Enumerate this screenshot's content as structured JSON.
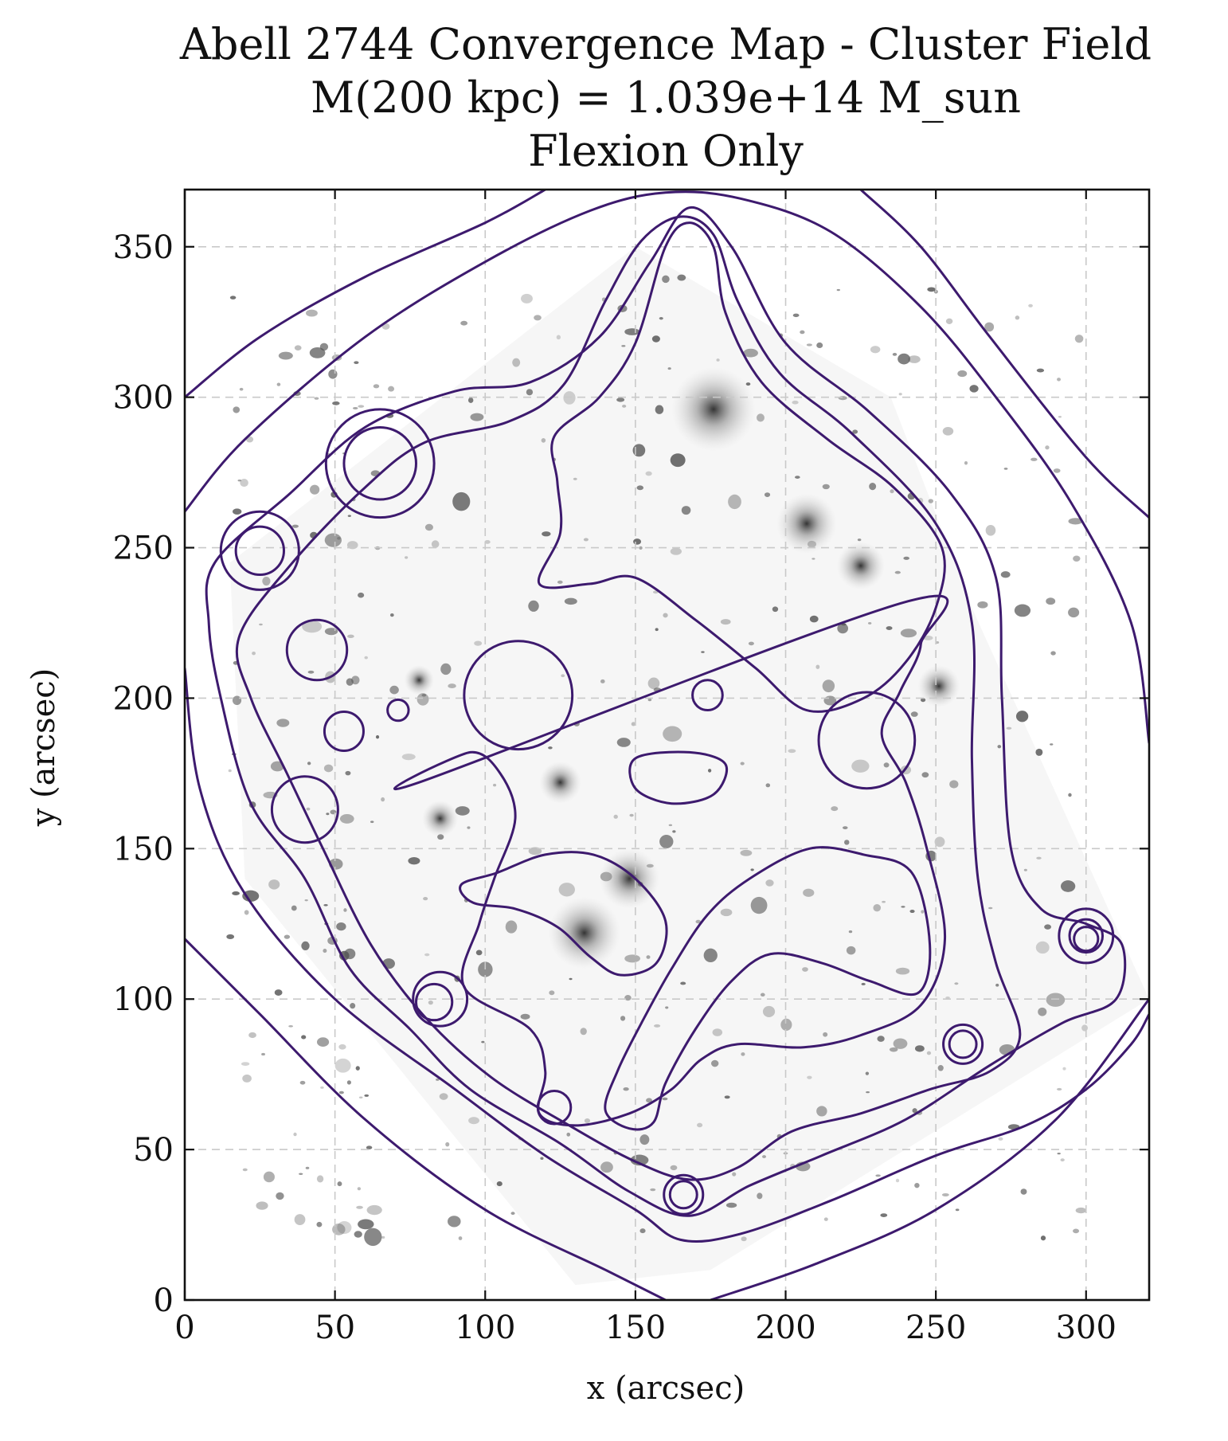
{
  "chart_data": {
    "type": "contour",
    "title_lines": [
      "Abell 2744 Convergence Map - Cluster Field",
      "M(200 kpc) = 1.039e+14 M_sun",
      "Flexion Only"
    ],
    "xlabel": "x (arcsec)",
    "ylabel": "y (arcsec)",
    "xlim": [
      0,
      321
    ],
    "ylim": [
      0,
      369
    ],
    "x_ticks": [
      0,
      50,
      100,
      150,
      200,
      250,
      300
    ],
    "y_ticks": [
      0,
      50,
      100,
      150,
      200,
      250,
      300,
      350
    ],
    "x_tick_labels": [
      "0",
      "50",
      "100",
      "150",
      "200",
      "250",
      "300"
    ],
    "y_tick_labels": [
      "0",
      "50",
      "100",
      "150",
      "200",
      "250",
      "300",
      "350"
    ],
    "grid": true,
    "background": "grayscale HST image of the Abell 2744 cluster field",
    "contour_color": "#3d1a6e",
    "contours": [
      {
        "name": "level-1",
        "points": [
          [
            0,
            300
          ],
          [
            25,
            320
          ],
          [
            60,
            340
          ],
          [
            100,
            358
          ],
          [
            120,
            369
          ]
        ]
      },
      {
        "name": "level-2",
        "points": [
          [
            225,
            369
          ],
          [
            245,
            350
          ],
          [
            268,
            320
          ],
          [
            300,
            280
          ],
          [
            321,
            260
          ]
        ]
      },
      {
        "name": "level-3",
        "points": [
          [
            0,
            120
          ],
          [
            25,
            95
          ],
          [
            60,
            60
          ],
          [
            100,
            30
          ],
          [
            140,
            10
          ],
          [
            160,
            0
          ]
        ]
      },
      {
        "name": "level-4",
        "points": [
          [
            175,
            0
          ],
          [
            210,
            12
          ],
          [
            250,
            30
          ],
          [
            290,
            60
          ],
          [
            321,
            100
          ]
        ]
      },
      {
        "name": "level-5",
        "points": [
          [
            0,
            262
          ],
          [
            20,
            286
          ],
          [
            60,
            320
          ],
          [
            100,
            345
          ],
          [
            135,
            362
          ],
          [
            160,
            368
          ],
          [
            185,
            366
          ],
          [
            215,
            355
          ],
          [
            245,
            330
          ],
          [
            270,
            300
          ],
          [
            295,
            265
          ],
          [
            315,
            225
          ],
          [
            321,
            185
          ]
        ]
      },
      {
        "name": "level-6",
        "points": [
          [
            0,
            210
          ],
          [
            5,
            170
          ],
          [
            20,
            135
          ],
          [
            50,
            100
          ],
          [
            90,
            70
          ],
          [
            120,
            48
          ],
          [
            150,
            30
          ],
          [
            165,
            20
          ],
          [
            185,
            22
          ],
          [
            215,
            33
          ],
          [
            250,
            48
          ],
          [
            280,
            58
          ],
          [
            300,
            70
          ],
          [
            315,
            85
          ],
          [
            321,
            95
          ]
        ]
      },
      {
        "name": "level-7",
        "points": [
          [
            10,
            245
          ],
          [
            35,
            268
          ],
          [
            60,
            290
          ],
          [
            90,
            302
          ],
          [
            115,
            305
          ],
          [
            138,
            320
          ],
          [
            155,
            345
          ],
          [
            168,
            363
          ],
          [
            182,
            350
          ],
          [
            200,
            318
          ],
          [
            228,
            295
          ],
          [
            255,
            268
          ],
          [
            270,
            240
          ],
          [
            272,
            200
          ],
          [
            275,
            150
          ],
          [
            285,
            130
          ],
          [
            300,
            125
          ],
          [
            312,
            118
          ],
          [
            310,
            100
          ],
          [
            292,
            92
          ],
          [
            268,
            78
          ],
          [
            240,
            60
          ],
          [
            212,
            48
          ],
          [
            188,
            38
          ],
          [
            168,
            28
          ],
          [
            148,
            36
          ],
          [
            125,
            52
          ],
          [
            95,
            70
          ],
          [
            75,
            90
          ],
          [
            55,
            110
          ],
          [
            40,
            140
          ],
          [
            22,
            165
          ],
          [
            12,
            200
          ],
          [
            8,
            225
          ]
        ]
      },
      {
        "name": "level-8",
        "points": [
          [
            18,
            220
          ],
          [
            35,
            244
          ],
          [
            60,
            270
          ],
          [
            80,
            285
          ],
          [
            108,
            292
          ],
          [
            126,
            304
          ],
          [
            140,
            332
          ],
          [
            152,
            352
          ],
          [
            165,
            360
          ],
          [
            176,
            354
          ],
          [
            184,
            332
          ],
          [
            198,
            308
          ],
          [
            222,
            288
          ],
          [
            250,
            258
          ],
          [
            262,
            225
          ],
          [
            262,
            180
          ],
          [
            264,
            140
          ],
          [
            270,
            112
          ],
          [
            278,
            88
          ],
          [
            268,
            76
          ],
          [
            248,
            70
          ],
          [
            225,
            62
          ],
          [
            202,
            56
          ],
          [
            184,
            44
          ],
          [
            168,
            40
          ],
          [
            150,
            46
          ],
          [
            128,
            58
          ],
          [
            102,
            74
          ],
          [
            80,
            94
          ],
          [
            62,
            118
          ],
          [
            46,
            150
          ],
          [
            34,
            175
          ],
          [
            22,
            200
          ]
        ]
      },
      {
        "name": "level-9",
        "points": [
          [
            118,
            238
          ],
          [
            125,
            255
          ],
          [
            124,
            272
          ],
          [
            123,
            287
          ],
          [
            138,
            300
          ],
          [
            150,
            318
          ],
          [
            160,
            350
          ],
          [
            168,
            358
          ],
          [
            176,
            350
          ],
          [
            180,
            328
          ],
          [
            192,
            305
          ],
          [
            214,
            286
          ],
          [
            236,
            270
          ],
          [
            252,
            250
          ],
          [
            250,
            230
          ],
          [
            240,
            212
          ],
          [
            226,
            200
          ],
          [
            207,
            196
          ],
          [
            190,
            210
          ],
          [
            170,
            226
          ],
          [
            150,
            240
          ],
          [
            135,
            238
          ]
        ]
      },
      {
        "name": "level-10",
        "points": [
          [
            78,
            172
          ],
          [
            95,
            182
          ],
          [
            105,
            175
          ],
          [
            110,
            160
          ],
          [
            103,
            140
          ],
          [
            98,
            125
          ],
          [
            93,
            104
          ],
          [
            115,
            90
          ],
          [
            120,
            76
          ],
          [
            118,
            62
          ],
          [
            130,
            58
          ],
          [
            148,
            62
          ],
          [
            162,
            70
          ],
          [
            172,
            80
          ],
          [
            184,
            85
          ],
          [
            206,
            84
          ],
          [
            225,
            88
          ],
          [
            245,
            98
          ],
          [
            253,
            120
          ],
          [
            247,
            150
          ],
          [
            240,
            172
          ],
          [
            232,
            188
          ],
          [
            238,
            202
          ],
          [
            245,
            218
          ],
          [
            240,
            232
          ]
        ]
      },
      {
        "name": "level-11",
        "points": [
          [
            140,
            63
          ],
          [
            148,
            57
          ],
          [
            156,
            59
          ],
          [
            160,
            72
          ],
          [
            170,
            90
          ],
          [
            182,
            106
          ],
          [
            195,
            115
          ],
          [
            212,
            112
          ],
          [
            228,
            106
          ],
          [
            244,
            102
          ],
          [
            248,
            118
          ],
          [
            242,
            142
          ],
          [
            226,
            148
          ],
          [
            208,
            150
          ],
          [
            188,
            140
          ],
          [
            174,
            128
          ],
          [
            162,
            110
          ],
          [
            152,
            92
          ],
          [
            144,
            76
          ]
        ]
      },
      {
        "name": "level-12",
        "points": [
          [
            92,
            138
          ],
          [
            104,
            142
          ],
          [
            120,
            148
          ],
          [
            136,
            148
          ],
          [
            150,
            140
          ],
          [
            160,
            126
          ],
          [
            157,
            112
          ],
          [
            145,
            108
          ],
          [
            135,
            114
          ],
          [
            124,
            124
          ],
          [
            110,
            130
          ],
          [
            96,
            132
          ]
        ]
      },
      {
        "name": "level-13",
        "points": [
          [
            150,
            180
          ],
          [
            168,
            182
          ],
          [
            180,
            178
          ],
          [
            176,
            168
          ],
          [
            162,
            165
          ],
          [
            150,
            170
          ]
        ]
      }
    ],
    "circles": [
      {
        "name": "ring-a",
        "cx": 65,
        "cy": 278,
        "r": 18
      },
      {
        "name": "ring-b",
        "cx": 65,
        "cy": 278,
        "r": 12
      },
      {
        "name": "ring-c",
        "cx": 25,
        "cy": 249,
        "r": 13
      },
      {
        "name": "ring-d",
        "cx": 25,
        "cy": 249,
        "r": 8
      },
      {
        "name": "ring-e",
        "cx": 44,
        "cy": 216,
        "r": 10
      },
      {
        "name": "ring-f",
        "cx": 53,
        "cy": 189,
        "r": 6.5
      },
      {
        "name": "ring-g",
        "cx": 71,
        "cy": 196,
        "r": 3.5
      },
      {
        "name": "ring-h",
        "cx": 40,
        "cy": 163,
        "r": 11
      },
      {
        "name": "ring-i",
        "cx": 111,
        "cy": 201,
        "r": 18
      },
      {
        "name": "ring-j",
        "cx": 174,
        "cy": 201,
        "r": 5
      },
      {
        "name": "ring-k",
        "cx": 227,
        "cy": 186,
        "r": 16
      },
      {
        "name": "ring-l",
        "cx": 85,
        "cy": 100,
        "r": 9
      },
      {
        "name": "ring-m",
        "cx": 83,
        "cy": 99,
        "r": 6
      },
      {
        "name": "ring-n",
        "cx": 123,
        "cy": 64,
        "r": 5.5
      },
      {
        "name": "ring-o",
        "cx": 166,
        "cy": 35,
        "r": 6.5
      },
      {
        "name": "ring-p",
        "cx": 166,
        "cy": 35,
        "r": 4.5
      },
      {
        "name": "ring-q",
        "cx": 259,
        "cy": 85,
        "r": 6.5
      },
      {
        "name": "ring-r",
        "cx": 259,
        "cy": 85,
        "r": 4.5
      },
      {
        "name": "ring-s",
        "cx": 300,
        "cy": 121,
        "r": 9
      },
      {
        "name": "ring-t",
        "cx": 300,
        "cy": 121,
        "r": 5.5
      },
      {
        "name": "ring-u",
        "cx": 300,
        "cy": 120,
        "r": 4
      }
    ]
  }
}
